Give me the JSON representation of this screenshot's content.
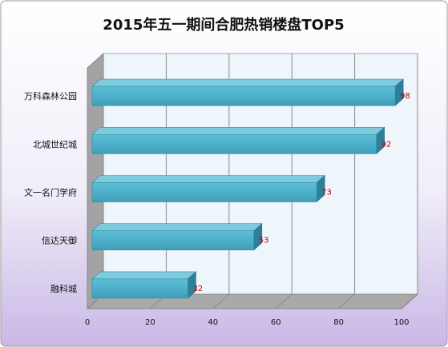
{
  "chart_data": {
    "type": "bar",
    "orientation": "horizontal",
    "title": "2015年五一期间合肥热销楼盘TOP5",
    "categories": [
      "万科森林公园",
      "北城世纪城",
      "文一名门学府",
      "信达天御",
      "融科城"
    ],
    "values": [
      98,
      92,
      73,
      53,
      32
    ],
    "xlim": [
      0,
      100
    ],
    "xticks": [
      0,
      20,
      40,
      60,
      80,
      100
    ],
    "xlabel": "",
    "ylabel": "",
    "grid": true,
    "legend": "none",
    "three_d": true,
    "colors": {
      "bar_front": "#4BACC6",
      "bar_top": "#7FCBDD",
      "bar_side": "#2E8099",
      "value_label": "#C00000",
      "plot_back": "#EEF5FB",
      "background_bottom": "#C9B8E6",
      "floor": "#A9A9A9"
    }
  }
}
